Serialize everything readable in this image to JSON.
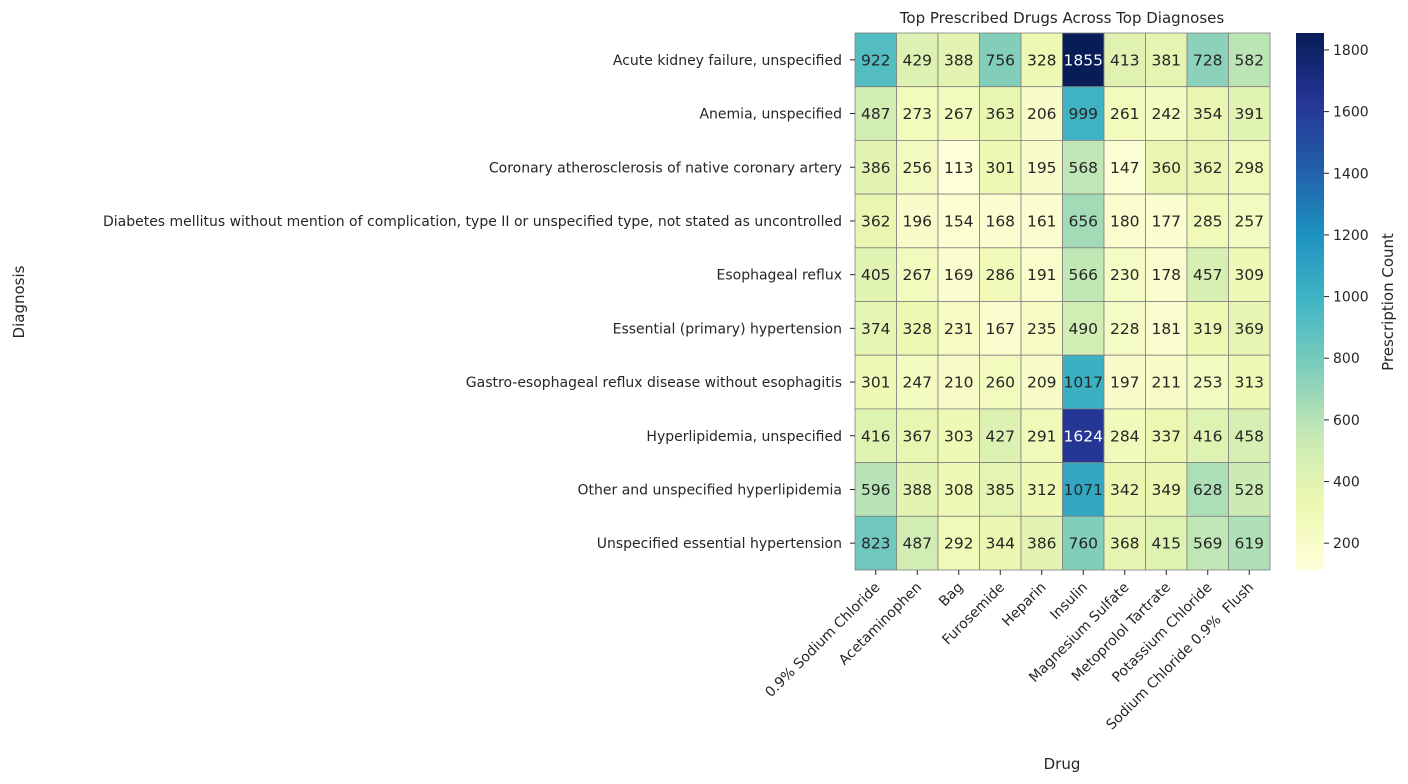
{
  "chart_data": {
    "type": "heatmap",
    "title": "Top Prescribed Drugs Across Top Diagnoses",
    "xlabel": "Drug",
    "ylabel": "Diagnosis",
    "colorbar_label": "Prescription Count",
    "colormap": "YlGnBu",
    "vmin": 113,
    "vmax": 1855,
    "colorbar_ticks": [
      200,
      400,
      600,
      800,
      1000,
      1200,
      1400,
      1600,
      1800
    ],
    "columns": [
      "0.9% Sodium Chloride",
      "Acetaminophen",
      "Bag",
      "Furosemide",
      "Heparin",
      "Insulin",
      "Magnesium Sulfate",
      "Metoprolol Tartrate",
      "Potassium Chloride",
      "Sodium Chloride 0.9%  Flush"
    ],
    "rows": [
      "Acute kidney failure, unspecified",
      "Anemia, unspecified",
      "Coronary atherosclerosis of native coronary artery",
      "Diabetes mellitus without mention of complication, type II or unspecified type, not stated as uncontrolled",
      "Esophageal reflux",
      "Essential (primary) hypertension",
      "Gastro-esophageal reflux disease without esophagitis",
      "Hyperlipidemia, unspecified",
      "Other and unspecified hyperlipidemia",
      "Unspecified essential hypertension"
    ],
    "values": [
      [
        922,
        429,
        388,
        756,
        328,
        1855,
        413,
        381,
        728,
        582
      ],
      [
        487,
        273,
        267,
        363,
        206,
        999,
        261,
        242,
        354,
        391
      ],
      [
        386,
        256,
        113,
        301,
        195,
        568,
        147,
        360,
        362,
        298
      ],
      [
        362,
        196,
        154,
        168,
        161,
        656,
        180,
        177,
        285,
        257
      ],
      [
        405,
        267,
        169,
        286,
        191,
        566,
        230,
        178,
        457,
        309
      ],
      [
        374,
        328,
        231,
        167,
        235,
        490,
        228,
        181,
        319,
        369
      ],
      [
        301,
        247,
        210,
        260,
        209,
        1017,
        197,
        211,
        253,
        313
      ],
      [
        416,
        367,
        303,
        427,
        291,
        1624,
        284,
        337,
        416,
        458
      ],
      [
        596,
        388,
        308,
        385,
        312,
        1071,
        342,
        349,
        628,
        528
      ],
      [
        823,
        487,
        292,
        344,
        386,
        760,
        368,
        415,
        569,
        619
      ]
    ]
  }
}
